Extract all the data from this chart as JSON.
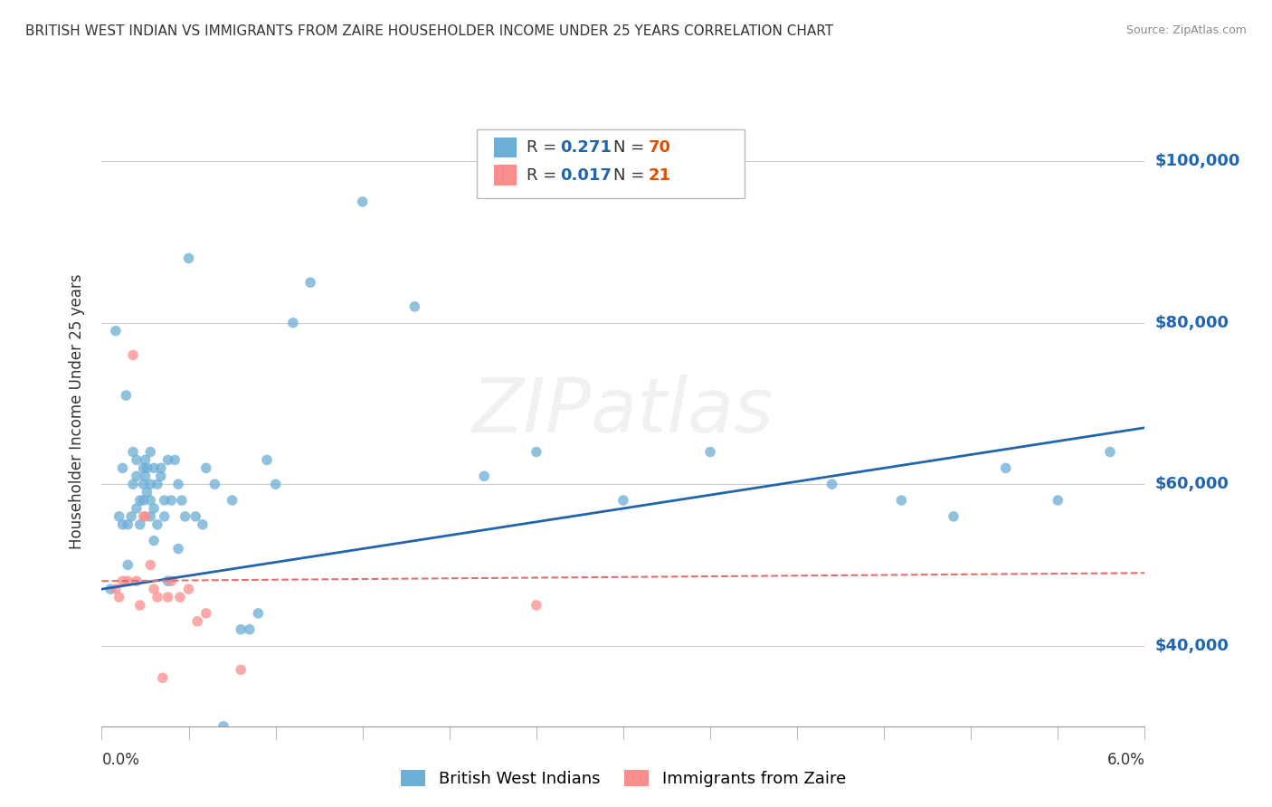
{
  "title": "BRITISH WEST INDIAN VS IMMIGRANTS FROM ZAIRE HOUSEHOLDER INCOME UNDER 25 YEARS CORRELATION CHART",
  "source": "Source: ZipAtlas.com",
  "ylabel": "Householder Income Under 25 years",
  "xlim": [
    0.0,
    6.0
  ],
  "ylim": [
    30000,
    108000
  ],
  "yticks": [
    40000,
    60000,
    80000,
    100000
  ],
  "ytick_labels": [
    "$40,000",
    "$60,000",
    "$80,000",
    "$100,000"
  ],
  "watermark": "ZIPatlas",
  "legend_bottom": [
    "British West Indians",
    "Immigrants from Zaire"
  ],
  "blue_color": "#6baed6",
  "pink_color": "#fc8d8d",
  "blue_trend_color": "#2166ac",
  "pink_trend_color": "#e07070",
  "blue_dots_x": [
    0.05,
    0.08,
    0.1,
    0.12,
    0.12,
    0.14,
    0.15,
    0.15,
    0.17,
    0.18,
    0.18,
    0.2,
    0.2,
    0.2,
    0.22,
    0.22,
    0.24,
    0.24,
    0.24,
    0.25,
    0.25,
    0.26,
    0.26,
    0.28,
    0.28,
    0.28,
    0.28,
    0.3,
    0.3,
    0.3,
    0.32,
    0.32,
    0.34,
    0.34,
    0.36,
    0.36,
    0.38,
    0.38,
    0.4,
    0.42,
    0.44,
    0.44,
    0.46,
    0.48,
    0.5,
    0.54,
    0.58,
    0.6,
    0.65,
    0.7,
    0.75,
    0.8,
    0.85,
    0.9,
    0.95,
    1.0,
    1.1,
    1.2,
    1.5,
    1.8,
    2.2,
    2.5,
    3.0,
    3.5,
    4.2,
    4.6,
    4.9,
    5.2,
    5.5,
    5.8
  ],
  "blue_dots_y": [
    47000,
    79000,
    56000,
    55000,
    62000,
    71000,
    55000,
    50000,
    56000,
    64000,
    60000,
    57000,
    61000,
    63000,
    58000,
    55000,
    62000,
    60000,
    58000,
    63000,
    61000,
    59000,
    62000,
    56000,
    64000,
    58000,
    60000,
    53000,
    57000,
    62000,
    55000,
    60000,
    62000,
    61000,
    58000,
    56000,
    63000,
    48000,
    58000,
    63000,
    60000,
    52000,
    58000,
    56000,
    88000,
    56000,
    55000,
    62000,
    60000,
    30000,
    58000,
    42000,
    42000,
    44000,
    63000,
    60000,
    80000,
    85000,
    95000,
    82000,
    61000,
    64000,
    58000,
    64000,
    60000,
    58000,
    56000,
    62000,
    58000,
    64000
  ],
  "pink_dots_x": [
    0.08,
    0.1,
    0.12,
    0.15,
    0.18,
    0.2,
    0.22,
    0.24,
    0.25,
    0.28,
    0.3,
    0.32,
    0.35,
    0.38,
    0.4,
    0.45,
    0.5,
    0.55,
    0.6,
    0.8,
    2.5
  ],
  "pink_dots_y": [
    47000,
    46000,
    48000,
    48000,
    76000,
    48000,
    45000,
    56000,
    56000,
    50000,
    47000,
    46000,
    36000,
    46000,
    48000,
    46000,
    47000,
    43000,
    44000,
    37000,
    45000
  ],
  "blue_trend_x": [
    0.0,
    6.0
  ],
  "blue_trend_y": [
    47000,
    67000
  ],
  "pink_trend_y": [
    48000,
    49000
  ],
  "grid_color": "#cccccc",
  "background_color": "#ffffff"
}
